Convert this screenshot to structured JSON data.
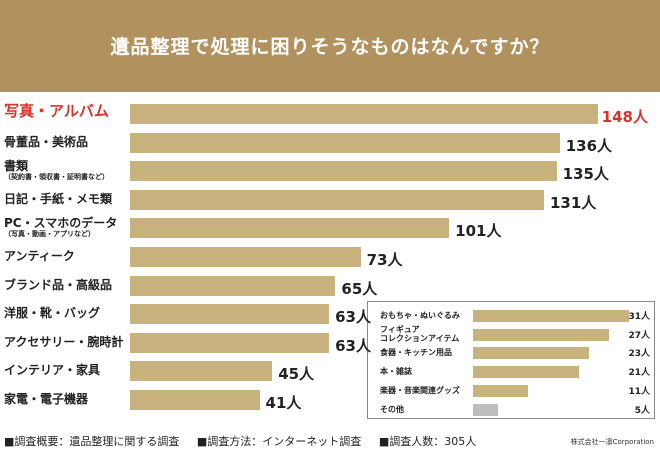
{
  "chart_data": {
    "type": "bar",
    "orientation": "horizontal",
    "title": "遺品整理で処理に困りそうなものはなんですか？",
    "unit": "人",
    "categories": [
      "写真・アルバム",
      "骨董品・美術品",
      "書類",
      "日記・手紙・メモ類",
      "PC・スマホのデータ",
      "アンティーク",
      "ブランド品・高級品",
      "洋服・靴・バッグ",
      "アクセサリー・腕時計",
      "インテリア・家具",
      "家電・電子機器"
    ],
    "subtitles": [
      "",
      "",
      "（契約書・領収書・証明書など）",
      "",
      "（写真・動画・アプリなど）",
      "",
      "",
      "",
      "",
      "",
      ""
    ],
    "values": [
      148,
      136,
      135,
      131,
      101,
      73,
      65,
      63,
      63,
      45,
      41
    ],
    "highlight_index": 0,
    "inset": {
      "categories": [
        "おもちゃ・ぬいぐるみ",
        "フィギュア\nコレクションアイテム",
        "食器・キッチン用品",
        "本・雑誌",
        "楽器・音楽関連グッズ",
        "その他"
      ],
      "values": [
        31,
        27,
        23,
        21,
        11,
        5
      ]
    },
    "colors": {
      "header": "#b1925e",
      "bar": "#c8b27e",
      "highlight": "#d9322a",
      "other": "#bdbdbd"
    }
  },
  "footer": {
    "items": [
      "■調査概要：遺品整理に関する調査",
      "■調査方法：インターネット調査",
      "■調査人数：305人"
    ],
    "company": "株式会社一凛Corporation"
  }
}
